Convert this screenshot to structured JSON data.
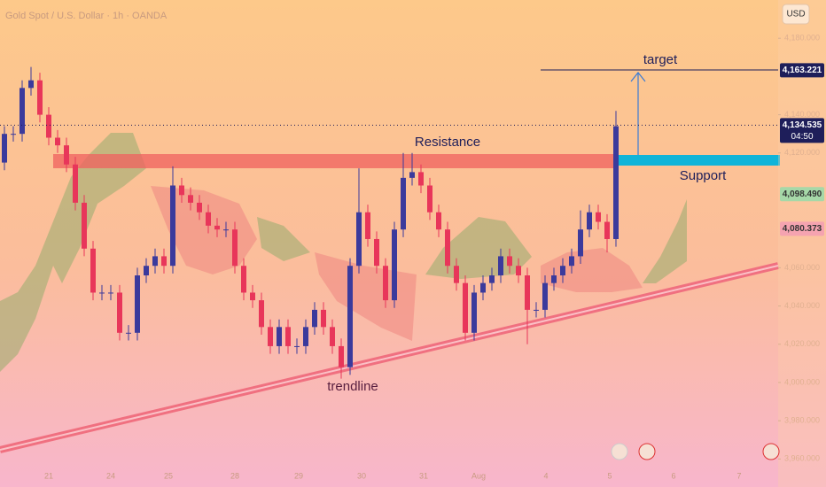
{
  "chart_data": {
    "type": "candlestick",
    "title": "Gold Spot / U.S. Dollar · 1h · OANDA",
    "currency": "USD",
    "ylim": [
      3956,
      4200
    ],
    "yticks": [
      {
        "value": 4180,
        "label": "4,180.000"
      },
      {
        "value": 4140,
        "label": "4,140.000"
      },
      {
        "value": 4120,
        "label": "4,120.000"
      },
      {
        "value": 4060,
        "label": "4,060.000"
      },
      {
        "value": 4040,
        "label": "4,040.000"
      },
      {
        "value": 4020,
        "label": "4,020.000"
      },
      {
        "value": 4000,
        "label": "4,000.000"
      },
      {
        "value": 3980,
        "label": "3,980.000"
      },
      {
        "value": 3960,
        "label": "3,960.000"
      }
    ],
    "categories": [
      "21",
      "24",
      "25",
      "28",
      "29",
      "30",
      "31",
      "Aug",
      "4",
      "5",
      "6",
      "7"
    ],
    "up_color": "#3b3a9c",
    "down_color": "#e8365a",
    "open": [
      4115,
      4130,
      4130,
      4154,
      4158,
      4140,
      4128,
      4124,
      4114,
      4094,
      4070,
      4047,
      4047,
      4047,
      4026,
      4026,
      4056,
      4061,
      4066,
      4061,
      4103,
      4098,
      4094,
      4089,
      4082,
      4080,
      4080,
      4061,
      4047,
      4043,
      4029,
      4019,
      4029,
      4019,
      4019,
      4029,
      4038,
      4029,
      4019,
      4008,
      4061,
      4089,
      4075,
      4061,
      4043,
      4080,
      4107,
      4110,
      4103,
      4089,
      4080,
      4061,
      4052,
      4026,
      4047,
      4052,
      4056,
      4066,
      4061,
      4056,
      4038,
      4038,
      4052,
      4056,
      4061,
      4066,
      4080,
      4089,
      4084,
      4075
    ],
    "high": [
      4134,
      4134,
      4158,
      4165,
      4162,
      4144,
      4132,
      4128,
      4118,
      4098,
      4074,
      4051,
      4051,
      4051,
      4030,
      4060,
      4065,
      4070,
      4070,
      4113,
      4107,
      4102,
      4098,
      4093,
      4086,
      4084,
      4084,
      4065,
      4051,
      4047,
      4033,
      4033,
      4033,
      4023,
      4033,
      4042,
      4042,
      4033,
      4023,
      4065,
      4112,
      4093,
      4079,
      4065,
      4084,
      4120,
      4120,
      4114,
      4107,
      4093,
      4084,
      4065,
      4056,
      4051,
      4056,
      4060,
      4070,
      4070,
      4065,
      4060,
      4042,
      4056,
      4060,
      4065,
      4070,
      4090,
      4093,
      4093,
      4088,
      4142
    ],
    "low": [
      4111,
      4126,
      4126,
      4150,
      4136,
      4124,
      4120,
      4110,
      4090,
      4066,
      4043,
      4043,
      4043,
      4022,
      4022,
      4022,
      4052,
      4057,
      4057,
      4057,
      4094,
      4090,
      4085,
      4078,
      4076,
      4076,
      4057,
      4043,
      4039,
      4025,
      4015,
      4015,
      4015,
      4015,
      4015,
      4025,
      4025,
      4015,
      4002,
      4004,
      4057,
      4071,
      4057,
      4039,
      4039,
      4076,
      4103,
      4099,
      4085,
      4076,
      4057,
      4048,
      4022,
      4022,
      4043,
      4048,
      4052,
      4057,
      4052,
      4020,
      4034,
      4034,
      4048,
      4052,
      4057,
      4062,
      4076,
      4080,
      4068,
      4071
    ],
    "close": [
      4130,
      4130,
      4154,
      4158,
      4140,
      4128,
      4124,
      4114,
      4094,
      4070,
      4047,
      4047,
      4047,
      4026,
      4026,
      4056,
      4061,
      4066,
      4061,
      4103,
      4098,
      4094,
      4089,
      4082,
      4080,
      4080,
      4061,
      4047,
      4043,
      4029,
      4019,
      4029,
      4019,
      4019,
      4029,
      4038,
      4029,
      4019,
      4008,
      4061,
      4089,
      4075,
      4061,
      4043,
      4080,
      4107,
      4110,
      4103,
      4089,
      4080,
      4061,
      4052,
      4026,
      4047,
      4052,
      4056,
      4066,
      4061,
      4056,
      4038,
      4038,
      4052,
      4056,
      4061,
      4066,
      4080,
      4089,
      4084,
      4075,
      4134
    ],
    "price_labels": [
      {
        "value": 4163.221,
        "label": "4,163.221",
        "color": "#1e1e5a"
      },
      {
        "value": 4134.535,
        "label": "4,134.535",
        "color": "#1e1e5a",
        "countdown": "04:50"
      },
      {
        "value": 4098.49,
        "label": "4,098.490",
        "color": "#a6d8a8"
      },
      {
        "value": 4080.373,
        "label": "4,080.373",
        "color": "#f5a3b0"
      }
    ],
    "annotations": {
      "target": "target",
      "resistance": "Resistance",
      "support": "Support",
      "trendline": "trendline"
    }
  }
}
